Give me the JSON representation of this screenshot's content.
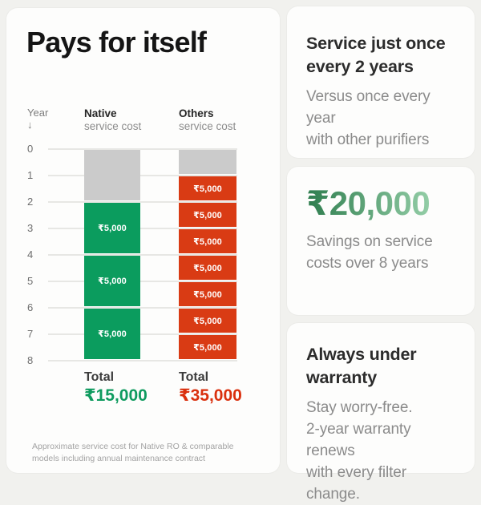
{
  "colors": {
    "page_bg": "#f1f1ee",
    "card_bg": "#fdfdfc",
    "native_green": "#0b9c5e",
    "others_red": "#d93b14",
    "prepaid_gray": "#cbcbcb",
    "total_green": "#0f9b5f",
    "total_red": "#da300e",
    "savings_gradient_from": "#2e7d4e",
    "savings_gradient_to": "#93cda6"
  },
  "left_card": {
    "title": "Pays for itself",
    "footnote_lines": [
      "Approximate service cost for Native RO & comparable",
      "models including annual maintenance contract"
    ]
  },
  "chart_data": {
    "type": "bar",
    "subtype": "stacked-vertical-timeline",
    "title": "Native vs Others service cost over 8 years",
    "currency": "INR",
    "year_axis": {
      "label": "Year",
      "arrow": "↓",
      "ticks": [
        0,
        1,
        2,
        3,
        4,
        5,
        6,
        7,
        8
      ]
    },
    "series": [
      {
        "name": "Native",
        "subtitle": "service cost",
        "color_key": "native_green",
        "segments": [
          {
            "from_year": 0,
            "to_year": 2,
            "kind": "included",
            "label": "",
            "value": 0
          },
          {
            "from_year": 2,
            "to_year": 4,
            "kind": "paid",
            "label": "₹5,000",
            "value": 5000
          },
          {
            "from_year": 4,
            "to_year": 6,
            "kind": "paid",
            "label": "₹5,000",
            "value": 5000
          },
          {
            "from_year": 6,
            "to_year": 8,
            "kind": "paid",
            "label": "₹5,000",
            "value": 5000
          }
        ],
        "total_label": "Total",
        "total": "₹15,000",
        "total_value": 15000,
        "total_color_key": "total_green"
      },
      {
        "name": "Others",
        "subtitle": "service cost",
        "color_key": "others_red",
        "segments": [
          {
            "from_year": 0,
            "to_year": 1,
            "kind": "included",
            "label": "",
            "value": 0
          },
          {
            "from_year": 1,
            "to_year": 2,
            "kind": "paid",
            "label": "₹5,000",
            "value": 5000
          },
          {
            "from_year": 2,
            "to_year": 3,
            "kind": "paid",
            "label": "₹5,000",
            "value": 5000
          },
          {
            "from_year": 3,
            "to_year": 4,
            "kind": "paid",
            "label": "₹5,000",
            "value": 5000
          },
          {
            "from_year": 4,
            "to_year": 5,
            "kind": "paid",
            "label": "₹5,000",
            "value": 5000
          },
          {
            "from_year": 5,
            "to_year": 6,
            "kind": "paid",
            "label": "₹5,000",
            "value": 5000
          },
          {
            "from_year": 6,
            "to_year": 7,
            "kind": "paid",
            "label": "₹5,000",
            "value": 5000
          },
          {
            "from_year": 7,
            "to_year": 8,
            "kind": "paid",
            "label": "₹5,000",
            "value": 5000
          }
        ],
        "total_label": "Total",
        "total": "₹35,000",
        "total_value": 35000,
        "total_color_key": "total_red"
      }
    ]
  },
  "right_cards": [
    {
      "title_lines": [
        "Service just once",
        "every 2 years"
      ],
      "body_lines": [
        "Versus once every year",
        "with other purifiers"
      ]
    },
    {
      "amount": "₹20,000",
      "body_lines": [
        "Savings on service",
        "costs over 8 years"
      ]
    },
    {
      "title_lines": [
        "Always under",
        "warranty"
      ],
      "body_lines": [
        "Stay worry-free.",
        "2-year warranty renews",
        "with every filter change."
      ]
    }
  ]
}
